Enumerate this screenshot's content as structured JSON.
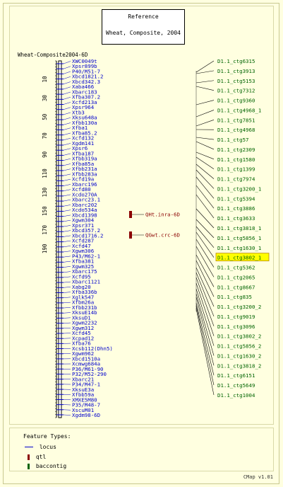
{
  "title": {
    "line1": "Reference",
    "line2": "Wheat, Composite, 2004"
  },
  "map_name": "Wheat-Composite2004-6D",
  "scale_ticks": [
    "10",
    "30",
    "50",
    "70",
    "90",
    "110",
    "130",
    "150",
    "170",
    "190"
  ],
  "loci": [
    "XWC0049t",
    "Xpsr899b",
    "P40/M51-7",
    "Xbcd1821.2",
    "Xbcd342.3",
    "Xaba466",
    "Xbarc183",
    "Xfba307.2",
    "Xcfd213a",
    "Xpsr964",
    "Xtb3",
    "Xksu648a",
    "Xfbb130a",
    "Xfba1",
    "Xfba85.2",
    "Xcfd132",
    "Xgdm141",
    "Xpsr6",
    "Xfba187",
    "Xfbb319a",
    "Xfba85a",
    "Xfbb231a",
    "Xfbb283a",
    "Xcfd19a",
    "Xbarc196",
    "Xcfd80",
    "Xcdo270A",
    "Xbarc23.1",
    "Xbarc202",
    "Xcdo534a",
    "Xbcd1398",
    "Xgwm304",
    "Xpsr371",
    "Xbcd357.2",
    "Xbcd1716.2",
    "Xcfd287",
    "Xcfd47",
    "Xgwm306",
    "P43/M62-1",
    "Xfba381",
    "Xgwm325",
    "Xbarc175",
    "Xcfd95",
    "Xbarc1121",
    "Xabg20",
    "Xfba336b",
    "Xglk547",
    "Xfbm26a",
    "Xfbb231b",
    "XksuE14b",
    "XksuD1",
    "Xgwm2232",
    "Xgwm312",
    "Xcfd45",
    "Xcpad12",
    "Xfba76",
    "Xcsb112(Dhn5)",
    "Xgwm962",
    "Xbcd1510a",
    "Xcmwg684a",
    "P36/M61-90",
    "P32/M52-290",
    "Xbarc21",
    "P34/M47-1",
    "XksuE3a",
    "Xfbb59a",
    "XMXE5M80",
    "P35/M48-7",
    "XscuM01",
    "Xgdm98-6D"
  ],
  "qtls": [
    "QHt.inra-6D",
    "QGwt.crc-6D"
  ],
  "contigs": [
    "D1.1_ctg6315",
    "D1.1_ctg3913",
    "D1.1_ctg5153",
    "D1.1_ctg7312",
    "D1.1_ctg9360",
    "D1.1_ctg4968_1",
    "D1.1_ctg7851",
    "D1.1_ctg4968",
    "D1.1_ctg57",
    "D1.1_ctg2309",
    "D1.1_ctg1580",
    "D1.1_ctg1399",
    "D1.1_ctg7974",
    "D1.1_ctg3200_1",
    "D1.1_ctg5394",
    "D1.1_ctg3886",
    "D1.1_ctg3633",
    "D1.1_ctg3818_1",
    "D1.1_ctg5856_1",
    "D1.1_ctg1630_1",
    "D1.1_ctg3802_1",
    "D1.1_ctg5362",
    "D1.1_ctg2065",
    "D1.1_ctg8667",
    "D1.1_ctg835",
    "D1.1_ctg3200_2",
    "D1.1_ctg9019",
    "D1.1_ctg3096",
    "D1.1_ctg3802_2",
    "D1.1_ctg5856_2",
    "D1.1_ctg1630_2",
    "D1.1_ctg3818_2",
    "D1.1_ctg6151",
    "D1.1_ctg5649",
    "D1.1_ctg1004"
  ],
  "highlighted_contig": "D1.1_ctg3802_1",
  "legend": {
    "title": "Feature Types:",
    "items": [
      {
        "label": "locus",
        "icon": "line"
      },
      {
        "label": "qtl",
        "icon": "bar"
      },
      {
        "label": "baccontig",
        "icon": "bar"
      }
    ]
  },
  "colors": {
    "locus": "#0000cc",
    "qtl": "#8b0000",
    "contig": "#006400",
    "highlight": "#ffff00",
    "background": "#ffffe0"
  },
  "footer": "CMap v1.01"
}
